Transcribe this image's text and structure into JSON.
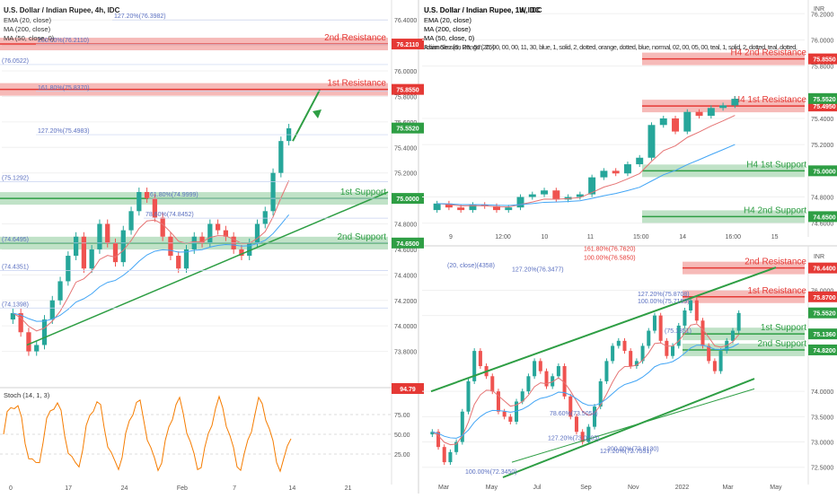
{
  "panels": {
    "left": {
      "title": "U.S. Dollar / Indian Rupee, 4h, IDC",
      "indicators": [
        "EMA (20, close)",
        "MA (200, close)",
        "MA (50, close, 0)"
      ],
      "stoch_label": "Stoch (14, 1, 3)",
      "stoch_value": "94.79",
      "y_ticks": [
        "76.4000",
        "76.2000",
        "76.0000",
        "75.8000",
        "75.6000",
        "75.4000",
        "75.2000",
        "75.0000",
        "74.8000",
        "74.6000",
        "74.4000",
        "74.2000",
        "74.0000",
        "73.8000"
      ],
      "stoch_ticks": [
        "75.00",
        "50.00",
        "25.00"
      ],
      "x_ticks": [
        "0",
        "17",
        "24",
        "Feb",
        "7",
        "14",
        "21"
      ],
      "levels": [
        {
          "label": "2nd Resistance",
          "price": "76.2110",
          "color": "#e53935"
        },
        {
          "label": "1st Resistance",
          "price": "75.8550",
          "color": "#e53935"
        },
        {
          "label": "1st Support",
          "price": "75.0000",
          "color": "#2e9e44"
        },
        {
          "label": "2nd Support",
          "price": "74.6500",
          "color": "#2e9e44"
        }
      ],
      "current_price": "75.5520",
      "fib_labels": [
        "127.20%(76.3982)",
        "200.00%(76.2110)",
        "(76.0522)",
        "161.80%(75.8370)",
        "127.20%(75.4983)",
        "(75.1292)",
        "(74.6495)",
        "(74.4351)",
        "(74.1398)",
        "61.80%(74.9999)",
        "78.60%(74.8452)"
      ]
    },
    "top_right": {
      "title": "U.S. Dollar / Indian Rupee, 1h, IDC",
      "indicators": [
        "EMA (20, close)",
        "MA (200, close)",
        "MA (50, close, 0)",
        "Asian Session Range (20, 00, 00, 00, 11, 30, blue, 1, solid, 2, dotted, orange, dotted, blue, normal, 02, 00, 05, 00, teal, 1, solid, 2, dotted, teal, dotted,"
      ],
      "currency": "INR",
      "y_ticks": [
        "76.2000",
        "76.0000",
        "75.8000",
        "75.4000",
        "75.2000",
        "74.8000",
        "74.6000"
      ],
      "x_ticks": [
        "9",
        "12:00",
        "10",
        "11",
        "15:00",
        "14",
        "16:00",
        "15"
      ],
      "levels": [
        {
          "label": "H4 2nd Resistance",
          "price": "75.8550",
          "color": "#e53935"
        },
        {
          "label": "H4 1st Resistance",
          "price": "75.4950",
          "color": "#e53935"
        },
        {
          "label": "H4 1st Support",
          "price": "75.0000",
          "color": "#2e9e44"
        },
        {
          "label": "H4 2nd Support",
          "price": "74.6500",
          "color": "#2e9e44"
        }
      ],
      "current_price": "75.5520"
    },
    "bottom_right": {
      "title": "U.S. Dollar / Indian Rupee, 1W, IDC",
      "indicators": [
        "EMA (20, close)",
        "MA (200, close)",
        "MA (50, close, 0)",
        "Ichimoku (9, 26, 52, 26)"
      ],
      "currency": "INR",
      "y_ticks": [
        "76.0000",
        "75.5000",
        "74.0000",
        "73.5000",
        "73.0000",
        "72.5000"
      ],
      "x_ticks": [
        "Mar",
        "May",
        "Jul",
        "Sep",
        "Nov",
        "2022",
        "Mar",
        "May"
      ],
      "levels": [
        {
          "label": "2nd Resistance",
          "price": "76.4400",
          "color": "#e53935"
        },
        {
          "label": "1st Resistance",
          "price": "75.8700",
          "color": "#e53935"
        },
        {
          "label": "1st Support",
          "price": "75.1360",
          "color": "#2e9e44"
        },
        {
          "label": "2nd Support",
          "price": "74.8200",
          "color": "#2e9e44"
        }
      ],
      "current_price": "75.5520",
      "fib_labels": [
        "161.80%(76.7620)",
        "100.00%(76.5850)",
        "127.20%(76.3477)",
        "(20, close)(4358)",
        "100.00%(75.7159)",
        "127.20%(75.8708)",
        "(75.1351)",
        "78.60%(73.5058)",
        "127.20%(73.0205)",
        "127.20%(72.7551)",
        "200.00%(72.8130)",
        "100.00%(72.3450)"
      ]
    }
  },
  "chart_data": [
    {
      "type": "candlestick",
      "title": "U.S. Dollar / Indian Rupee, 4h, IDC",
      "ylim": [
        73.6,
        76.5
      ],
      "closes": [
        74.1,
        73.95,
        73.8,
        73.85,
        74.05,
        74.2,
        74.35,
        74.55,
        74.7,
        74.45,
        74.6,
        74.8,
        74.65,
        74.5,
        74.75,
        74.9,
        75.05,
        75.0,
        74.85,
        74.7,
        74.55,
        74.45,
        74.6,
        74.7,
        74.65,
        74.8,
        74.75,
        74.7,
        74.6,
        74.55,
        74.65,
        74.8,
        74.9,
        75.2,
        75.45,
        75.55
      ],
      "levels": [
        76.211,
        75.855,
        75.0,
        74.65
      ]
    },
    {
      "type": "candlestick",
      "title": "U.S. Dollar / Indian Rupee, 1h, IDC",
      "ylim": [
        74.55,
        76.25
      ],
      "closes": [
        74.75,
        74.72,
        74.7,
        74.74,
        74.73,
        74.7,
        74.72,
        74.8,
        74.82,
        74.85,
        74.78,
        74.8,
        74.82,
        74.95,
        75.0,
        74.98,
        75.05,
        75.1,
        75.35,
        75.4,
        75.3,
        75.45,
        75.42,
        75.48,
        75.5,
        75.55
      ],
      "levels": [
        75.855,
        75.495,
        75.0,
        74.65
      ]
    },
    {
      "type": "candlestick",
      "title": "U.S. Dollar / Indian Rupee, 1W, IDC",
      "ylim": [
        72.3,
        76.7
      ],
      "closes": [
        73.2,
        72.9,
        72.6,
        72.8,
        73.0,
        73.6,
        74.2,
        74.8,
        74.5,
        74.3,
        74.0,
        73.6,
        73.5,
        73.4,
        73.8,
        74.0,
        74.3,
        74.6,
        74.4,
        74.1,
        74.3,
        74.5,
        73.9,
        73.5,
        73.2,
        73.0,
        73.3,
        73.7,
        74.2,
        74.6,
        74.9,
        75.0,
        74.8,
        74.5,
        74.6,
        74.9,
        75.2,
        75.5,
        75.0,
        74.7,
        74.9,
        75.3,
        75.6,
        75.8,
        75.4,
        74.9,
        74.6,
        74.4,
        74.8,
        75.0,
        75.2,
        75.55
      ],
      "levels": [
        76.44,
        75.87,
        75.136,
        74.82
      ]
    }
  ]
}
